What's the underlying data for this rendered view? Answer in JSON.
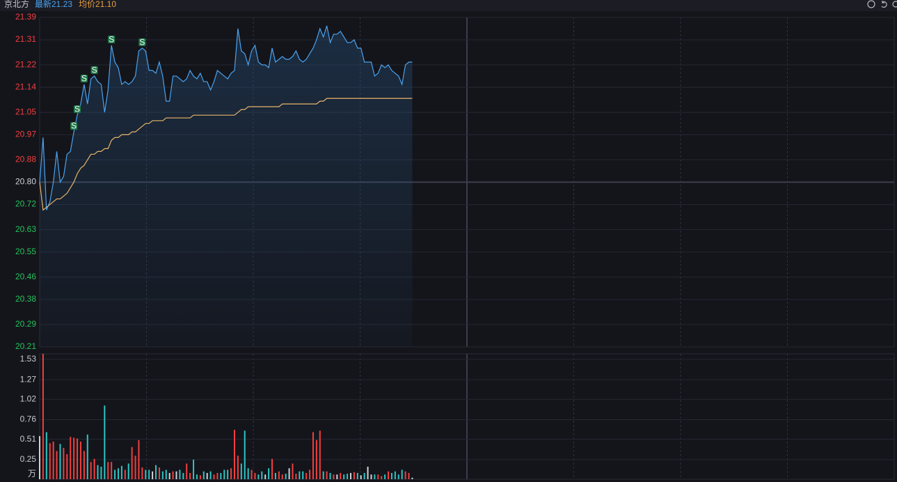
{
  "header": {
    "name": "京北方",
    "latest": "最新21.23",
    "avg": "均价21.10"
  },
  "chart_data": [
    {
      "type": "line",
      "xlim": [
        0,
        250
      ],
      "ylim": [
        20.21,
        21.39
      ],
      "yticks": [
        21.39,
        21.31,
        21.22,
        21.14,
        21.05,
        20.97,
        20.88,
        {
          "value": 20.8,
          "label": "20.80"
        },
        20.72,
        20.63,
        20.55,
        20.46,
        20.38,
        20.29,
        20.21
      ],
      "baseline": 20.8,
      "up_color": "#f23f3f",
      "down_color": "#27c25c",
      "flat_color": "#d0d3da",
      "grid": true,
      "signal_label": "S",
      "signals": [
        10,
        11,
        13,
        16,
        21,
        30
      ],
      "series": [
        {
          "color": "#4aa3f0",
          "values": [
            20.8,
            20.96,
            20.7,
            20.73,
            20.8,
            20.91,
            20.8,
            20.82,
            20.9,
            20.91,
            20.98,
            21.04,
            21.08,
            21.15,
            21.08,
            21.17,
            21.18,
            21.16,
            21.15,
            21.05,
            21.13,
            21.29,
            21.23,
            21.21,
            21.15,
            21.16,
            21.15,
            21.16,
            21.18,
            21.27,
            21.28,
            21.27,
            21.2,
            21.2,
            21.19,
            21.23,
            21.18,
            21.09,
            21.09,
            21.18,
            21.18,
            21.17,
            21.16,
            21.17,
            21.2,
            21.18,
            21.17,
            21.19,
            21.16,
            21.16,
            21.13,
            21.16,
            21.2,
            21.19,
            21.18,
            21.17,
            21.19,
            21.2,
            21.35,
            21.27,
            21.26,
            21.22,
            21.27,
            21.29,
            21.23,
            21.22,
            21.22,
            21.21,
            21.28,
            21.23,
            21.24,
            21.25,
            21.24,
            21.24,
            21.25,
            21.27,
            21.24,
            21.23,
            21.24,
            21.26,
            21.28,
            21.31,
            21.35,
            21.32,
            21.36,
            21.3,
            21.33,
            21.33,
            21.34,
            21.32,
            21.3,
            21.3,
            21.31,
            21.28,
            21.28,
            21.23,
            21.23,
            21.23,
            21.18,
            21.19,
            21.22,
            21.21,
            21.22,
            21.2,
            21.19,
            21.18,
            21.15,
            21.22,
            21.23,
            21.23
          ]
        },
        {
          "color": "#e8b46a",
          "values": [
            20.8,
            20.7,
            20.71,
            20.72,
            20.73,
            20.74,
            20.74,
            20.75,
            20.76,
            20.78,
            20.8,
            20.83,
            20.85,
            20.86,
            20.88,
            20.9,
            20.9,
            20.91,
            20.91,
            20.92,
            20.92,
            20.95,
            20.96,
            20.96,
            20.97,
            20.97,
            20.97,
            20.98,
            20.98,
            20.99,
            21.0,
            21.01,
            21.01,
            21.02,
            21.02,
            21.02,
            21.02,
            21.03,
            21.03,
            21.03,
            21.03,
            21.03,
            21.03,
            21.03,
            21.03,
            21.04,
            21.04,
            21.04,
            21.04,
            21.04,
            21.04,
            21.04,
            21.04,
            21.04,
            21.04,
            21.04,
            21.04,
            21.04,
            21.05,
            21.06,
            21.06,
            21.07,
            21.07,
            21.07,
            21.07,
            21.07,
            21.07,
            21.07,
            21.07,
            21.07,
            21.07,
            21.08,
            21.08,
            21.08,
            21.08,
            21.08,
            21.08,
            21.08,
            21.08,
            21.08,
            21.08,
            21.08,
            21.09,
            21.09,
            21.1,
            21.1,
            21.1,
            21.1,
            21.1,
            21.1,
            21.1,
            21.1,
            21.1,
            21.1,
            21.1,
            21.1,
            21.1,
            21.1,
            21.1,
            21.1,
            21.1,
            21.1,
            21.1,
            21.1,
            21.1,
            21.1,
            21.1,
            21.1,
            21.1,
            21.1
          ]
        }
      ]
    },
    {
      "type": "bar",
      "unit": "万",
      "ylim": [
        0,
        1.6
      ],
      "yticks": [
        1.53,
        1.27,
        1.02,
        0.76,
        0.51,
        0.25
      ],
      "grid": true,
      "values": [
        0.55,
        1.6,
        0.6,
        0.46,
        0.48,
        0.36,
        0.45,
        0.4,
        0.32,
        0.54,
        0.53,
        0.52,
        0.48,
        0.36,
        0.57,
        0.22,
        0.26,
        0.18,
        0.16,
        0.94,
        0.22,
        0.22,
        0.12,
        0.14,
        0.17,
        0.12,
        0.2,
        0.41,
        0.3,
        0.5,
        0.15,
        0.12,
        0.12,
        0.1,
        0.18,
        0.15,
        0.1,
        0.12,
        0.08,
        0.1,
        0.1,
        0.12,
        0.08,
        0.2,
        0.08,
        0.25,
        0.06,
        0.05,
        0.1,
        0.08,
        0.1,
        0.06,
        0.08,
        0.08,
        0.12,
        0.12,
        0.14,
        0.63,
        0.3,
        0.2,
        0.62,
        0.14,
        0.12,
        0.08,
        0.06,
        0.1,
        0.06,
        0.14,
        0.26,
        0.08,
        0.1,
        0.06,
        0.07,
        0.14,
        0.2,
        0.07,
        0.1,
        0.1,
        0.08,
        0.12,
        0.6,
        0.5,
        0.62,
        0.1,
        0.1,
        0.08,
        0.06,
        0.06,
        0.08,
        0.06,
        0.07,
        0.08,
        0.09,
        0.08,
        0.05,
        0.08,
        0.16,
        0.06,
        0.06,
        0.06,
        0.04,
        0.06,
        0.1,
        0.08,
        0.1,
        0.06,
        0.12,
        0.1,
        0.08,
        0.02
      ]
    }
  ]
}
